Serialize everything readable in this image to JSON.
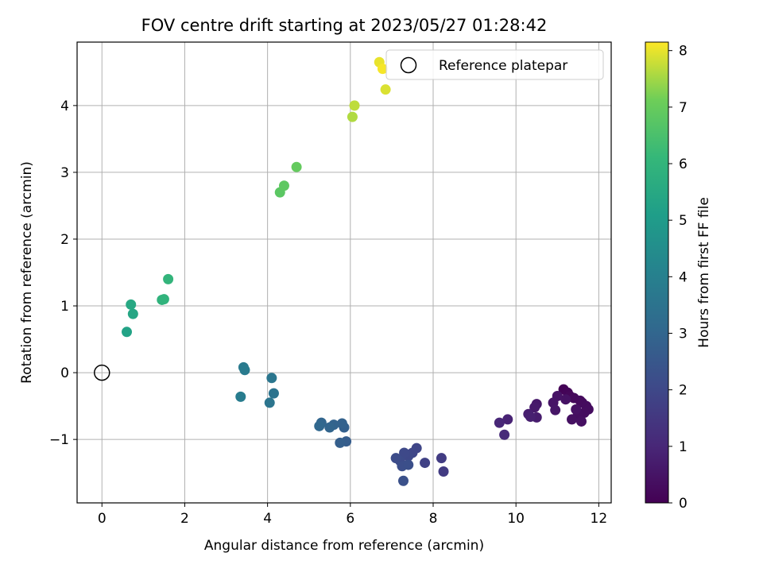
{
  "chart_data": {
    "type": "scatter",
    "title": "FOV centre drift starting at 2023/05/27 01:28:42",
    "xlabel": "Angular distance from reference (arcmin)",
    "ylabel": "Rotation from reference (arcmin)",
    "xlim": [
      -0.6,
      12.3
    ],
    "ylim": [
      -1.95,
      4.95
    ],
    "xticks": [
      0,
      2,
      4,
      6,
      8,
      10,
      12
    ],
    "yticks": [
      -1,
      0,
      1,
      2,
      3,
      4
    ],
    "grid": true,
    "colormap": "viridis",
    "colorbar": {
      "label": "Hours from first FF file",
      "range": [
        0,
        8.15
      ],
      "ticks": [
        0,
        1,
        2,
        3,
        4,
        5,
        6,
        7,
        8
      ]
    },
    "legend": {
      "placement": "top-right",
      "entries": [
        {
          "label": "Reference platepar",
          "marker": "hollow-circle"
        }
      ]
    },
    "reference_point": {
      "x": 0,
      "y": 0
    },
    "points": [
      {
        "x": 11.15,
        "y": -0.25,
        "h": 0.05
      },
      {
        "x": 11.25,
        "y": -0.3,
        "h": 0.1
      },
      {
        "x": 11.3,
        "y": -0.35,
        "h": 0.15
      },
      {
        "x": 11.4,
        "y": -0.38,
        "h": 0.2
      },
      {
        "x": 11.55,
        "y": -0.42,
        "h": 0.22
      },
      {
        "x": 11.6,
        "y": -0.45,
        "h": 0.25
      },
      {
        "x": 11.7,
        "y": -0.5,
        "h": 0.28
      },
      {
        "x": 11.75,
        "y": -0.55,
        "h": 0.3
      },
      {
        "x": 11.65,
        "y": -0.6,
        "h": 0.32
      },
      {
        "x": 11.5,
        "y": -0.62,
        "h": 0.35
      },
      {
        "x": 11.35,
        "y": -0.7,
        "h": 0.38
      },
      {
        "x": 11.58,
        "y": -0.73,
        "h": 0.4
      },
      {
        "x": 11.45,
        "y": -0.55,
        "h": 0.42
      },
      {
        "x": 11.2,
        "y": -0.4,
        "h": 0.45
      },
      {
        "x": 11.0,
        "y": -0.35,
        "h": 0.48
      },
      {
        "x": 10.9,
        "y": -0.45,
        "h": 0.5
      },
      {
        "x": 10.95,
        "y": -0.56,
        "h": 0.55
      },
      {
        "x": 10.5,
        "y": -0.47,
        "h": 0.6
      },
      {
        "x": 10.45,
        "y": -0.52,
        "h": 0.65
      },
      {
        "x": 10.5,
        "y": -0.67,
        "h": 0.7
      },
      {
        "x": 10.3,
        "y": -0.62,
        "h": 0.75
      },
      {
        "x": 10.35,
        "y": -0.66,
        "h": 0.8
      },
      {
        "x": 9.8,
        "y": -0.7,
        "h": 0.9
      },
      {
        "x": 9.6,
        "y": -0.75,
        "h": 1.0
      },
      {
        "x": 9.72,
        "y": -0.93,
        "h": 1.1
      },
      {
        "x": 8.25,
        "y": -1.48,
        "h": 1.6
      },
      {
        "x": 8.2,
        "y": -1.28,
        "h": 1.65
      },
      {
        "x": 7.8,
        "y": -1.35,
        "h": 1.8
      },
      {
        "x": 7.6,
        "y": -1.13,
        "h": 1.9
      },
      {
        "x": 7.5,
        "y": -1.2,
        "h": 1.95
      },
      {
        "x": 7.4,
        "y": -1.25,
        "h": 2.0
      },
      {
        "x": 7.3,
        "y": -1.2,
        "h": 2.05
      },
      {
        "x": 7.2,
        "y": -1.32,
        "h": 2.1
      },
      {
        "x": 7.1,
        "y": -1.28,
        "h": 2.15
      },
      {
        "x": 7.25,
        "y": -1.4,
        "h": 2.2
      },
      {
        "x": 7.4,
        "y": -1.38,
        "h": 2.25
      },
      {
        "x": 7.28,
        "y": -1.62,
        "h": 2.3
      },
      {
        "x": 5.9,
        "y": -1.03,
        "h": 2.7
      },
      {
        "x": 5.75,
        "y": -1.05,
        "h": 2.75
      },
      {
        "x": 5.85,
        "y": -0.82,
        "h": 2.8
      },
      {
        "x": 5.8,
        "y": -0.76,
        "h": 2.85
      },
      {
        "x": 5.6,
        "y": -0.78,
        "h": 2.9
      },
      {
        "x": 5.5,
        "y": -0.82,
        "h": 2.95
      },
      {
        "x": 5.3,
        "y": -0.75,
        "h": 3.0
      },
      {
        "x": 5.25,
        "y": -0.8,
        "h": 3.05
      },
      {
        "x": 4.15,
        "y": -0.31,
        "h": 3.5
      },
      {
        "x": 4.05,
        "y": -0.45,
        "h": 3.55
      },
      {
        "x": 4.1,
        "y": -0.08,
        "h": 3.6
      },
      {
        "x": 3.42,
        "y": 0.08,
        "h": 3.75
      },
      {
        "x": 3.45,
        "y": 0.04,
        "h": 3.8
      },
      {
        "x": 3.35,
        "y": -0.36,
        "h": 3.85
      },
      {
        "x": 0.6,
        "y": 0.61,
        "h": 5.3
      },
      {
        "x": 0.75,
        "y": 0.88,
        "h": 5.4
      },
      {
        "x": 0.7,
        "y": 1.02,
        "h": 5.5
      },
      {
        "x": 1.45,
        "y": 1.09,
        "h": 5.9
      },
      {
        "x": 1.5,
        "y": 1.1,
        "h": 5.95
      },
      {
        "x": 1.6,
        "y": 1.4,
        "h": 6.0
      },
      {
        "x": 4.3,
        "y": 2.7,
        "h": 6.8
      },
      {
        "x": 4.4,
        "y": 2.8,
        "h": 6.85
      },
      {
        "x": 4.7,
        "y": 3.08,
        "h": 6.95
      },
      {
        "x": 6.05,
        "y": 3.83,
        "h": 7.6
      },
      {
        "x": 6.1,
        "y": 4.0,
        "h": 7.7
      },
      {
        "x": 6.85,
        "y": 4.24,
        "h": 7.9
      },
      {
        "x": 6.7,
        "y": 4.65,
        "h": 8.0
      },
      {
        "x": 6.78,
        "y": 4.55,
        "h": 8.1
      }
    ]
  }
}
